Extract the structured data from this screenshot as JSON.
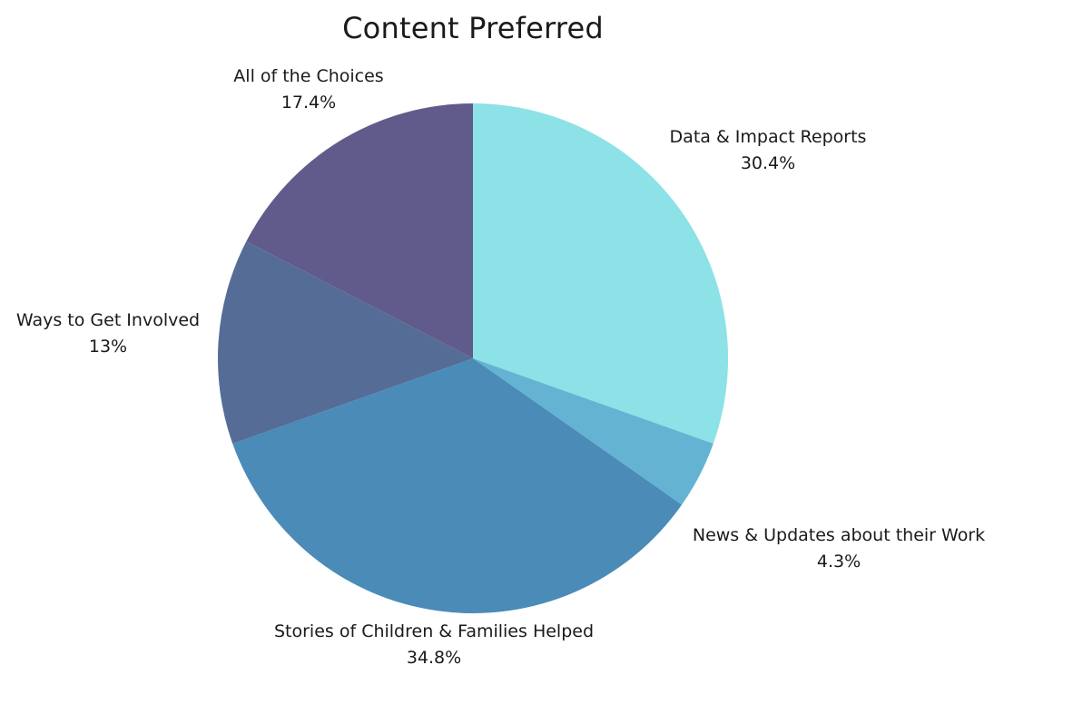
{
  "chart_data": {
    "type": "pie",
    "title": "Content Preferred",
    "start_angle": "12 o'clock, clockwise",
    "slices": [
      {
        "label": "Data & Impact Reports",
        "value": 30.4,
        "display": "30.4%",
        "color": "#8CE2E6"
      },
      {
        "label": "News & Updates about their Work",
        "value": 4.3,
        "display": "4.3%",
        "color": "#64B3D2"
      },
      {
        "label": "Stories of Children & Families Helped",
        "value": 34.8,
        "display": "34.8%",
        "color": "#4A8BB8"
      },
      {
        "label": "Ways to Get Involved",
        "value": 13,
        "display": "13%",
        "color": "#546C96"
      },
      {
        "label": "All of the Choices",
        "value": 17.4,
        "display": "17.4%",
        "color": "#615B8C"
      }
    ],
    "legend": "none (direct labels)"
  },
  "labels": [
    {
      "name": "Data & Impact Reports",
      "pct": "30.4%"
    },
    {
      "name": "News & Updates about their Work",
      "pct": "4.3%"
    },
    {
      "name": "Stories of Children & Families Helped",
      "pct": "34.8%"
    },
    {
      "name": "Ways to Get Involved",
      "pct": "13%"
    },
    {
      "name": "All of the Choices",
      "pct": "17.4%"
    }
  ]
}
